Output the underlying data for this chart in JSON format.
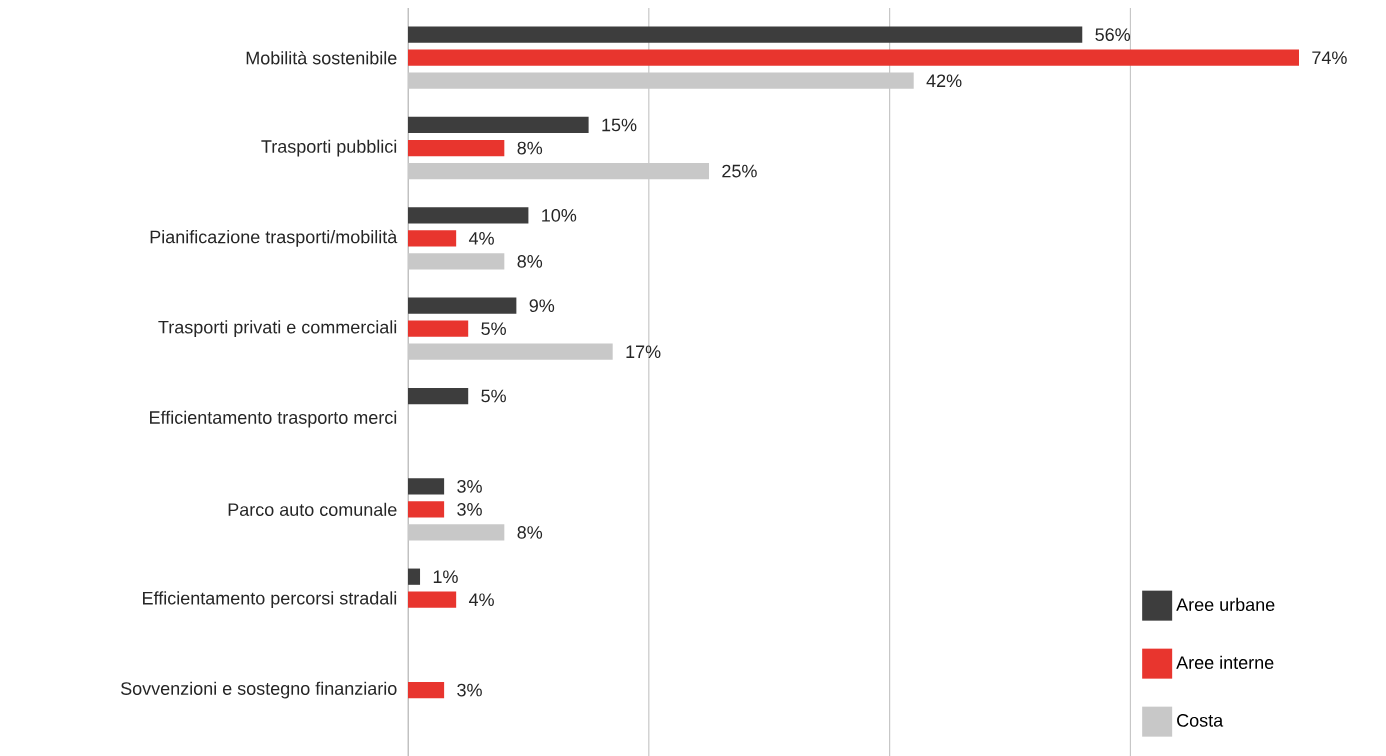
{
  "chart_data": {
    "type": "bar",
    "orientation": "horizontal",
    "categories": [
      "Mobilità sostenibile",
      "Trasporti pubblici",
      "Pianificazione trasporti/mobilità",
      "Trasporti privati e commerciali",
      "Efficientamento trasporto merci",
      "Parco auto comunale",
      "Efficientamento percorsi stradali",
      "Sovvenzioni e sostegno finanziario"
    ],
    "series": [
      {
        "name": "Aree urbane",
        "color": "#3d3d3d",
        "values": [
          56,
          15,
          10,
          9,
          5,
          3,
          1,
          null
        ],
        "value_labels": [
          "56%",
          "15%",
          "10%",
          "9%",
          "5%",
          "3%",
          "1%",
          null
        ]
      },
      {
        "name": "Aree interne",
        "color": "#e8352e",
        "values": [
          74,
          8,
          4,
          5,
          null,
          3,
          4,
          3
        ],
        "value_labels": [
          "74%",
          "8%",
          "4%",
          "5%",
          null,
          "3%",
          "4%",
          "3%"
        ]
      },
      {
        "name": "Costa",
        "color": "#c8c8c8",
        "values": [
          42,
          25,
          8,
          17,
          null,
          8,
          null,
          null
        ],
        "value_labels": [
          "42%",
          "25%",
          "8%",
          "17%",
          null,
          "8%",
          null,
          null
        ]
      }
    ],
    "xlim": [
      0,
      74
    ],
    "xticks": [
      {
        "value": 20,
        "label": null
      },
      {
        "value": 40,
        "label": null
      },
      {
        "value": 60,
        "label": null
      }
    ],
    "grid": "x",
    "legend": "bottom right",
    "tick_labels": "y"
  }
}
